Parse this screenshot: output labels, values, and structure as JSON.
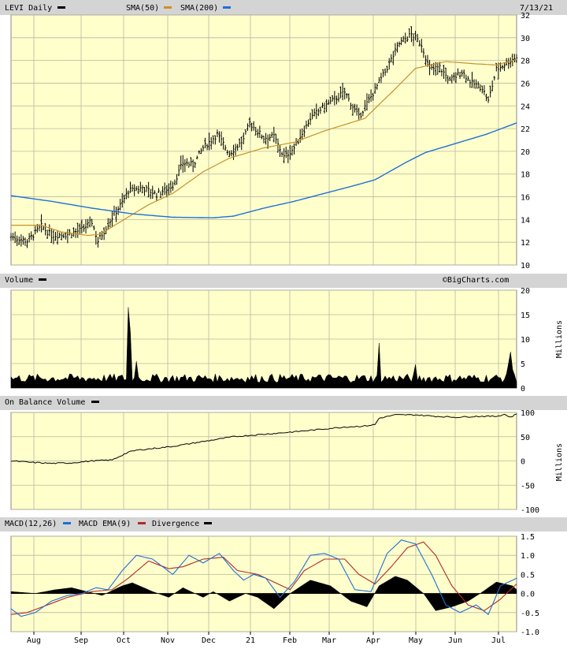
{
  "date_label": "7/13/21",
  "copyright": "©BigCharts.com",
  "colors": {
    "plot_bg": "#ffffcc",
    "header_bg": "#d4d4d4",
    "grid": "#b8b8a0",
    "price": "#000000",
    "sma50": "#c8902a",
    "sma200": "#1f6fd6",
    "macd": "#1f6fd6",
    "ema": "#b22a2a",
    "divergence": "#000000"
  },
  "price_panel": {
    "ticker": "LEVI Daily",
    "legend": [
      {
        "label": "SMA(50)",
        "color": "#c8902a"
      },
      {
        "label": "SMA(200)",
        "color": "#1f6fd6"
      }
    ],
    "y_ticks": [
      "32",
      "30",
      "28",
      "26",
      "24",
      "22",
      "20",
      "18",
      "16",
      "14",
      "12",
      "10"
    ]
  },
  "volume_panel": {
    "title": "Volume",
    "y_ticks": [
      "20",
      "15",
      "10",
      "5",
      "0"
    ],
    "unit": "Millions"
  },
  "obv_panel": {
    "title": "On Balance Volume",
    "y_ticks": [
      "100",
      "50",
      "0",
      "-50",
      "-100"
    ],
    "unit": "Millions"
  },
  "macd_panel": {
    "legend": [
      {
        "label": "MACD(12,26)",
        "color": "#1f6fd6"
      },
      {
        "label": "MACD EMA(9)",
        "color": "#b22a2a"
      },
      {
        "label": "Divergence",
        "color": "#000000"
      }
    ],
    "y_ticks": [
      "1.5",
      "1.0",
      "0.5",
      "0.0",
      "-0.5",
      "-1.0"
    ]
  },
  "x_axis_labels": [
    "Aug",
    "Sep",
    "Oct",
    "Nov",
    "Dec",
    "21",
    "Feb",
    "Mar",
    "Apr",
    "May",
    "Jun",
    "Jul"
  ],
  "chart_data": [
    {
      "type": "line",
      "panel": "price",
      "title": "LEVI Daily",
      "x_anchor_labels": [
        "Aug",
        "Sep",
        "Oct",
        "Nov",
        "Dec",
        "21",
        "Feb",
        "Mar",
        "Apr",
        "May",
        "Jun",
        "Jul"
      ],
      "ylim": [
        10,
        32
      ],
      "series": [
        {
          "name": "LEVI Daily",
          "kind": "price_ohlc",
          "keyframes": [
            [
              0,
              12.5
            ],
            [
              8,
              12.1
            ],
            [
              15,
              13.4
            ],
            [
              20,
              12.6
            ],
            [
              28,
              12.7
            ],
            [
              35,
              13.1
            ],
            [
              40,
              13.8
            ],
            [
              43,
              12.1
            ],
            [
              46,
              13.0
            ],
            [
              50,
              14.2
            ],
            [
              55,
              15.5
            ],
            [
              58,
              16.5
            ],
            [
              65,
              16.8
            ],
            [
              72,
              16.2
            ],
            [
              80,
              17.0
            ],
            [
              85,
              19.0
            ],
            [
              90,
              18.8
            ],
            [
              95,
              20.3
            ],
            [
              102,
              21.5
            ],
            [
              108,
              19.8
            ],
            [
              115,
              21.0
            ],
            [
              118,
              22.5
            ],
            [
              125,
              21.2
            ],
            [
              130,
              21.3
            ],
            [
              135,
              19.5
            ],
            [
              140,
              20.3
            ],
            [
              148,
              22.9
            ],
            [
              153,
              23.7
            ],
            [
              160,
              24.6
            ],
            [
              165,
              25.2
            ],
            [
              172,
              23.0
            ],
            [
              178,
              24.8
            ],
            [
              185,
              27.0
            ],
            [
              192,
              29.5
            ],
            [
              198,
              30.3
            ],
            [
              203,
              29.4
            ],
            [
              207,
              27.2
            ],
            [
              212,
              27.4
            ],
            [
              217,
              26.2
            ],
            [
              223,
              27.0
            ],
            [
              228,
              26.0
            ],
            [
              233,
              25.6
            ],
            [
              236,
              24.4
            ],
            [
              240,
              27.2
            ],
            [
              246,
              27.9
            ],
            [
              250,
              28.3
            ]
          ]
        },
        {
          "name": "SMA(50)",
          "keyframes": [
            [
              0,
              13.5
            ],
            [
              15,
              13.5
            ],
            [
              25,
              12.9
            ],
            [
              38,
              12.6
            ],
            [
              44,
              12.7
            ],
            [
              55,
              13.9
            ],
            [
              68,
              15.3
            ],
            [
              80,
              16.3
            ],
            [
              95,
              18.2
            ],
            [
              108,
              19.4
            ],
            [
              125,
              20.3
            ],
            [
              140,
              20.8
            ],
            [
              155,
              21.8
            ],
            [
              175,
              22.9
            ],
            [
              190,
              25.5
            ],
            [
              200,
              27.3
            ],
            [
              215,
              27.9
            ],
            [
              230,
              27.7
            ],
            [
              240,
              27.6
            ],
            [
              250,
              28.1
            ]
          ]
        },
        {
          "name": "SMA(200)",
          "keyframes": [
            [
              0,
              16.1
            ],
            [
              20,
              15.6
            ],
            [
              40,
              15.0
            ],
            [
              60,
              14.5
            ],
            [
              80,
              14.2
            ],
            [
              100,
              14.15
            ],
            [
              110,
              14.3
            ],
            [
              125,
              15.0
            ],
            [
              140,
              15.6
            ],
            [
              155,
              16.3
            ],
            [
              170,
              17.0
            ],
            [
              180,
              17.5
            ],
            [
              195,
              19.0
            ],
            [
              205,
              19.9
            ],
            [
              220,
              20.7
            ],
            [
              235,
              21.5
            ],
            [
              250,
              22.5
            ]
          ]
        }
      ]
    },
    {
      "type": "area",
      "panel": "volume",
      "title": "Volume",
      "ylabel": "Millions",
      "ylim": [
        0,
        20
      ],
      "spikes": [
        [
          58,
          16.5
        ],
        [
          59,
          11.5
        ],
        [
          62,
          5.5
        ],
        [
          182,
          9.2
        ],
        [
          200,
          4.8
        ],
        [
          246,
          5.0
        ],
        [
          247,
          7.4
        ],
        [
          248,
          3.8
        ]
      ],
      "baseline": 2.0
    },
    {
      "type": "line",
      "panel": "obv",
      "title": "On Balance Volume",
      "ylabel": "Millions",
      "ylim": [
        -100,
        100
      ],
      "series": [
        {
          "name": "On Balance Volume",
          "keyframes": [
            [
              0,
              0
            ],
            [
              10,
              -3
            ],
            [
              20,
              -5
            ],
            [
              30,
              -4
            ],
            [
              40,
              0
            ],
            [
              50,
              2
            ],
            [
              58,
              18
            ],
            [
              62,
              22
            ],
            [
              80,
              30
            ],
            [
              95,
              40
            ],
            [
              110,
              50
            ],
            [
              125,
              55
            ],
            [
              140,
              60
            ],
            [
              150,
              64
            ],
            [
              165,
              70
            ],
            [
              175,
              72
            ],
            [
              180,
              75
            ],
            [
              182,
              88
            ],
            [
              190,
              95
            ],
            [
              200,
              95
            ],
            [
              210,
              92
            ],
            [
              220,
              90
            ],
            [
              230,
              92
            ],
            [
              240,
              92
            ],
            [
              244,
              96
            ],
            [
              247,
              90
            ],
            [
              250,
              97
            ]
          ]
        }
      ]
    },
    {
      "type": "line",
      "panel": "macd",
      "title": "MACD(12,26)",
      "ylim": [
        -1.0,
        1.5
      ],
      "series": [
        {
          "name": "MACD(12,26)",
          "keyframes": [
            [
              0,
              -0.4
            ],
            [
              5,
              -0.6
            ],
            [
              12,
              -0.5
            ],
            [
              20,
              -0.2
            ],
            [
              28,
              -0.05
            ],
            [
              35,
              0.0
            ],
            [
              42,
              0.15
            ],
            [
              48,
              0.1
            ],
            [
              55,
              0.6
            ],
            [
              62,
              1.0
            ],
            [
              70,
              0.9
            ],
            [
              80,
              0.5
            ],
            [
              88,
              1.0
            ],
            [
              95,
              0.8
            ],
            [
              103,
              1.05
            ],
            [
              110,
              0.6
            ],
            [
              115,
              0.35
            ],
            [
              120,
              0.5
            ],
            [
              126,
              0.4
            ],
            [
              133,
              -0.1
            ],
            [
              140,
              0.3
            ],
            [
              148,
              1.0
            ],
            [
              155,
              1.05
            ],
            [
              162,
              0.9
            ],
            [
              170,
              0.1
            ],
            [
              178,
              0.05
            ],
            [
              186,
              1.05
            ],
            [
              193,
              1.4
            ],
            [
              200,
              1.3
            ],
            [
              208,
              0.5
            ],
            [
              215,
              -0.3
            ],
            [
              222,
              -0.5
            ],
            [
              230,
              -0.3
            ],
            [
              236,
              -0.55
            ],
            [
              242,
              0.2
            ],
            [
              250,
              0.4
            ]
          ]
        },
        {
          "name": "MACD EMA(9)",
          "keyframes": [
            [
              0,
              -0.55
            ],
            [
              8,
              -0.5
            ],
            [
              18,
              -0.3
            ],
            [
              28,
              -0.1
            ],
            [
              40,
              0.05
            ],
            [
              50,
              0.1
            ],
            [
              58,
              0.4
            ],
            [
              68,
              0.85
            ],
            [
              78,
              0.65
            ],
            [
              85,
              0.7
            ],
            [
              95,
              0.9
            ],
            [
              105,
              0.95
            ],
            [
              112,
              0.6
            ],
            [
              122,
              0.5
            ],
            [
              130,
              0.3
            ],
            [
              138,
              0.1
            ],
            [
              145,
              0.6
            ],
            [
              155,
              0.9
            ],
            [
              165,
              0.9
            ],
            [
              172,
              0.5
            ],
            [
              180,
              0.25
            ],
            [
              188,
              0.7
            ],
            [
              196,
              1.2
            ],
            [
              204,
              1.35
            ],
            [
              210,
              1.0
            ],
            [
              218,
              0.2
            ],
            [
              226,
              -0.3
            ],
            [
              234,
              -0.45
            ],
            [
              242,
              -0.15
            ],
            [
              250,
              0.25
            ]
          ]
        },
        {
          "name": "Divergence",
          "keyframes": [
            [
              0,
              0.05
            ],
            [
              12,
              0.0
            ],
            [
              22,
              0.1
            ],
            [
              30,
              0.15
            ],
            [
              45,
              -0.05
            ],
            [
              55,
              0.2
            ],
            [
              60,
              0.28
            ],
            [
              70,
              0.05
            ],
            [
              78,
              -0.1
            ],
            [
              85,
              0.15
            ],
            [
              95,
              -0.1
            ],
            [
              100,
              0.05
            ],
            [
              108,
              -0.2
            ],
            [
              116,
              0.0
            ],
            [
              122,
              -0.1
            ],
            [
              130,
              -0.4
            ],
            [
              138,
              0.0
            ],
            [
              148,
              0.35
            ],
            [
              158,
              0.2
            ],
            [
              168,
              -0.2
            ],
            [
              176,
              -0.35
            ],
            [
              182,
              0.2
            ],
            [
              190,
              0.45
            ],
            [
              196,
              0.35
            ],
            [
              204,
              0.0
            ],
            [
              210,
              -0.45
            ],
            [
              218,
              -0.35
            ],
            [
              226,
              -0.2
            ],
            [
              232,
              0.0
            ],
            [
              240,
              0.3
            ],
            [
              248,
              0.2
            ],
            [
              250,
              0.1
            ]
          ]
        }
      ]
    }
  ]
}
